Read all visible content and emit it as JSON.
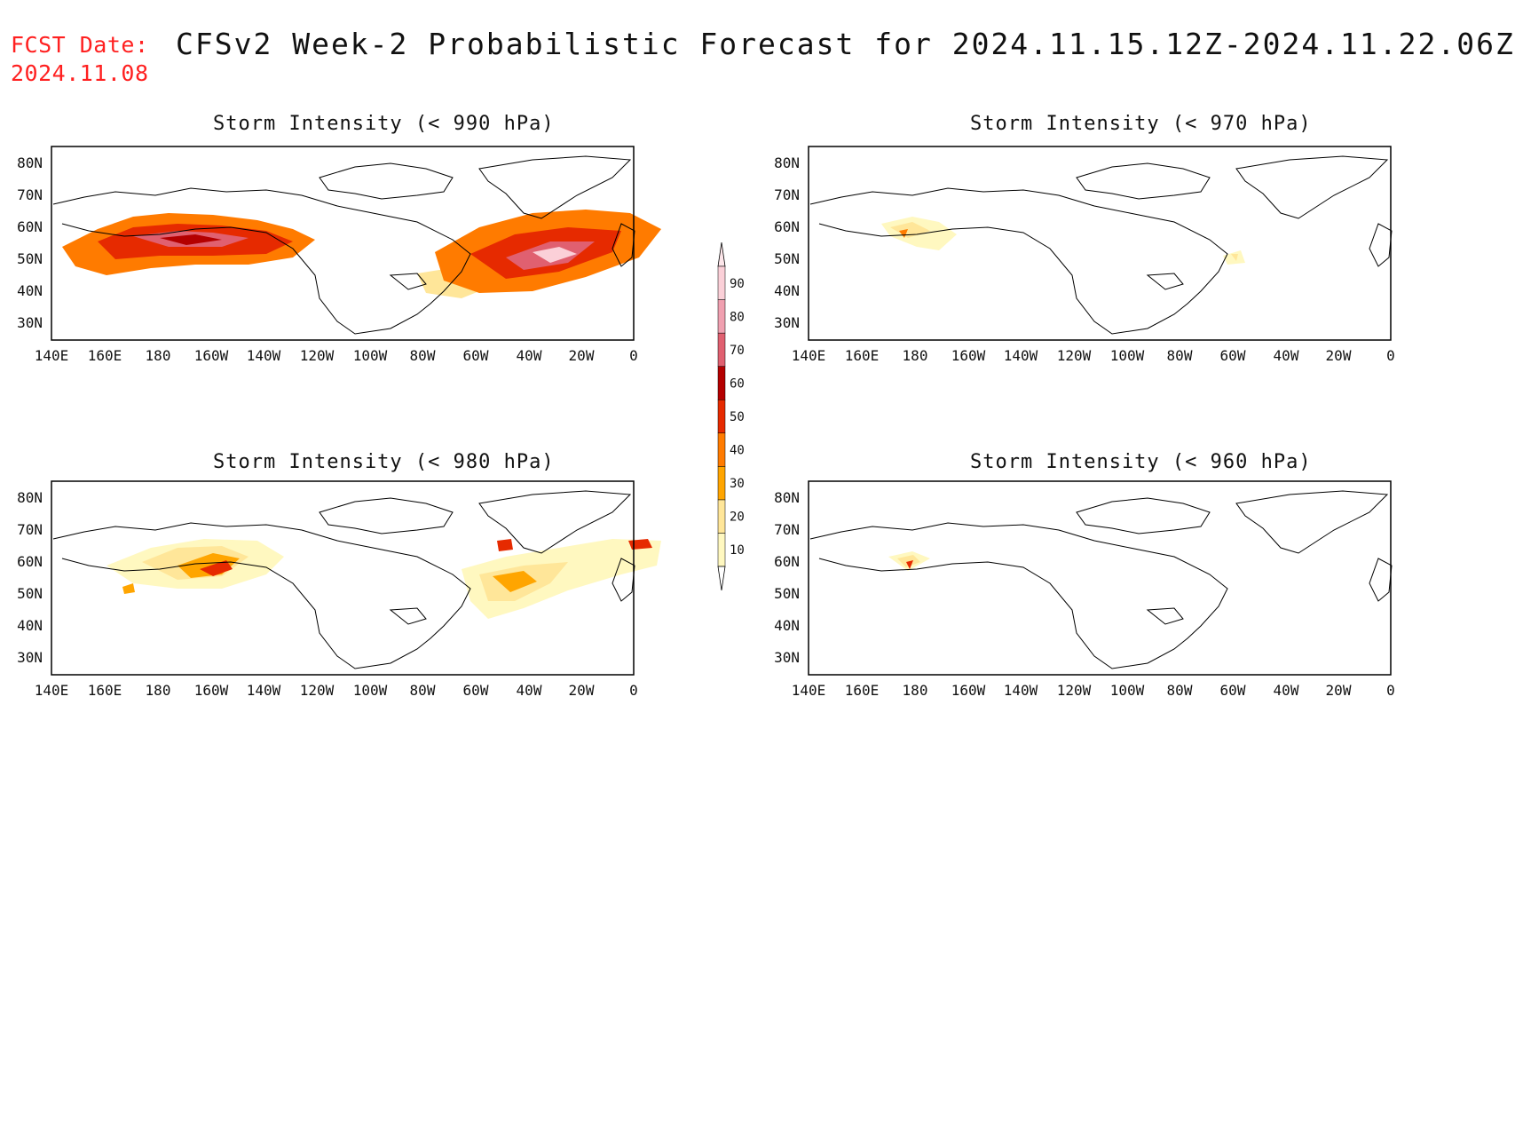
{
  "header": {
    "fcst_label": "FCST Date:",
    "fcst_date": "2024.11.08",
    "title": "CFSv2 Week-2 Probabilistic Forecast for 2024.11.15.12Z-2024.11.22.06Z"
  },
  "panels": [
    {
      "id": "p990",
      "title": "Storm Intensity (< 990 hPa)"
    },
    {
      "id": "p970",
      "title": "Storm Intensity (< 970 hPa)"
    },
    {
      "id": "p980",
      "title": "Storm Intensity (< 980 hPa)"
    },
    {
      "id": "p960",
      "title": "Storm Intensity (< 960 hPa)"
    }
  ],
  "axes": {
    "lon_labels": [
      "140E",
      "160E",
      "180",
      "160W",
      "140W",
      "120W",
      "100W",
      "80W",
      "60W",
      "40W",
      "20W",
      "0"
    ],
    "lat_labels": [
      "80N",
      "70N",
      "60N",
      "50N",
      "40N",
      "30N"
    ]
  },
  "colorbar": {
    "levels": [
      "10",
      "20",
      "30",
      "40",
      "50",
      "60",
      "70",
      "80",
      "90"
    ],
    "colors": [
      "#fff8c0",
      "#ffe699",
      "#ffa500",
      "#ff7b00",
      "#e62a00",
      "#b40000",
      "#e06070",
      "#f0a0b0",
      "#fbd0d8"
    ]
  },
  "land_outline_color": "#000000"
}
